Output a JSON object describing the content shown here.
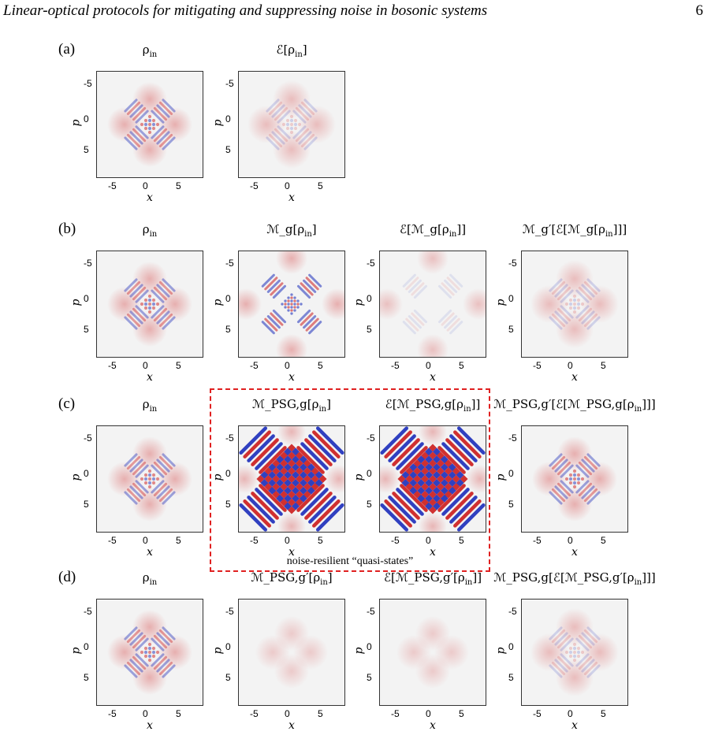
{
  "header": {
    "title": "Linear-optical protocols for mitigating and suppressing noise in bosonic systems",
    "page_number": "6"
  },
  "axes": {
    "ticks": [
      "-5",
      "0",
      "5"
    ],
    "xlabel": "x",
    "ylabel": "p"
  },
  "rows": [
    {
      "label": "(a)",
      "panels": [
        {
          "title_parts": [
            "ρ",
            "in",
            ""
          ],
          "style": "wigner_in"
        },
        {
          "title_parts": [
            "ℰ[ρ",
            "in",
            "]"
          ],
          "style": "wigner_noisy"
        }
      ]
    },
    {
      "label": "(b)",
      "panels": [
        {
          "title_parts": [
            "ρ",
            "in",
            ""
          ],
          "style": "wigner_in"
        },
        {
          "title_parts": [
            "ℳ_g[ρ",
            "in",
            "]"
          ],
          "style": "wigner_expanded"
        },
        {
          "title_parts": [
            "ℰ[ℳ_g[ρ",
            "in",
            "]]"
          ],
          "style": "wigner_faint"
        },
        {
          "title_parts": [
            "ℳ_g′[ℰ[ℳ_g[ρ",
            "in",
            "]]]"
          ],
          "style": "wigner_noisy"
        }
      ]
    },
    {
      "label": "(c)",
      "panels": [
        {
          "title_parts": [
            "ρ",
            "in",
            ""
          ],
          "style": "wigner_in"
        },
        {
          "title_parts": [
            "ℳ_PSG,g[ρ",
            "in",
            "]"
          ],
          "style": "wigner_strong"
        },
        {
          "title_parts": [
            "ℰ[ℳ_PSG,g[ρ",
            "in",
            "]]"
          ],
          "style": "wigner_strong"
        },
        {
          "title_parts": [
            "ℳ_PSG,g′[ℰ[ℳ_PSG,g[ρ",
            "in",
            "]]]"
          ],
          "style": "wigner_in"
        }
      ]
    },
    {
      "label": "(d)",
      "panels": [
        {
          "title_parts": [
            "ρ",
            "in",
            ""
          ],
          "style": "wigner_in"
        },
        {
          "title_parts": [
            "ℳ_PSG,g′[ρ",
            "in",
            "]"
          ],
          "style": "wigner_blob"
        },
        {
          "title_parts": [
            "ℰ[ℳ_PSG,g′[ρ",
            "in",
            "]]"
          ],
          "style": "wigner_blob"
        },
        {
          "title_parts": [
            "ℳ_PSG,g[ℰ[ℳ_PSG,g′[ρ",
            "in",
            "]]]"
          ],
          "style": "wigner_noisy"
        }
      ]
    }
  ],
  "highlight_caption": "noise-resilient “quasi-states”",
  "colors": {
    "positive": "#d03030",
    "negative": "#3040c0",
    "background": "#f3f3f3",
    "highlight": "#e02020"
  }
}
